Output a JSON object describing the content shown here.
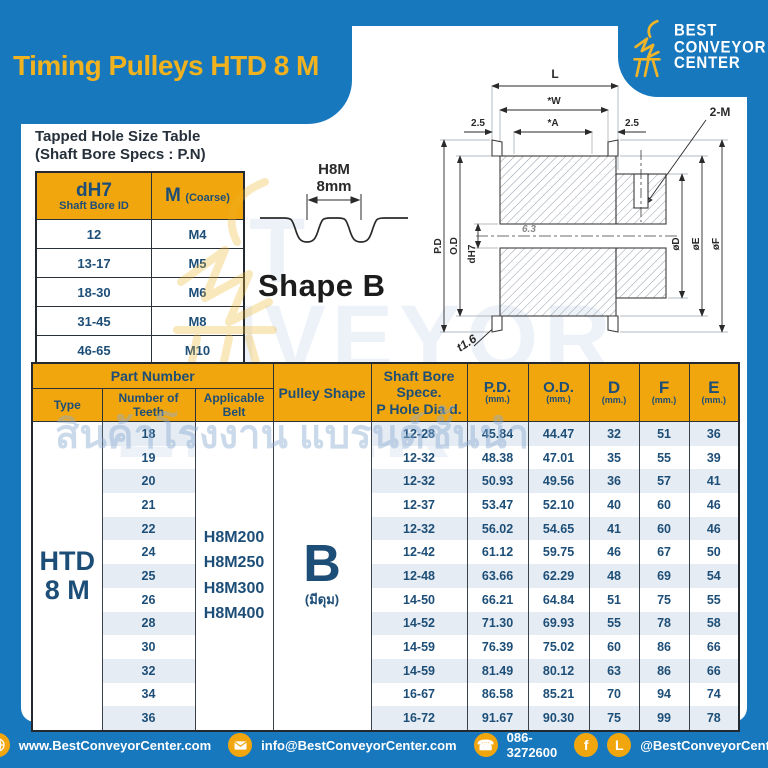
{
  "colors": {
    "blue": "#1878bd",
    "yellow": "#f2a60d",
    "title_yellow": "#f0b21e",
    "navy": "#1d4e77",
    "stripe": "#e6ecf3"
  },
  "header": {
    "title": "Timing Pulleys HTD 8 M",
    "logo": {
      "line1": "BEST",
      "line2": "CONVEYOR",
      "line3": "CENTER"
    }
  },
  "tapped_table": {
    "heading_line1": "Tapped Hole Size Table",
    "heading_line2": "(Shaft Bore Specs : P.N)",
    "col1_title": "dH7",
    "col1_sub": "Shaft Bore ID",
    "col2_title": "M",
    "col2_sub": "(Coarse)",
    "rows": [
      [
        "12",
        "M4"
      ],
      [
        "13-17",
        "M5"
      ],
      [
        "18-30",
        "M6"
      ],
      [
        "31-45",
        "M8"
      ],
      [
        "46-65",
        "M10"
      ]
    ]
  },
  "profile": {
    "belt_code": "H8M",
    "pitch": "8mm",
    "shape_label": "Shape B"
  },
  "drawing": {
    "l": "L",
    "w": "*W",
    "a": "*A",
    "offset_left": "2.5",
    "offset_right": "2.5",
    "screw": "2-M",
    "pd": "P.D",
    "od": "O.D",
    "bore": "dH7",
    "roughness": "6.3",
    "dia_d": "øD",
    "dia_e": "øE",
    "dia_f": "øF",
    "thickness": "t1.6"
  },
  "main_table": {
    "header": {
      "part_number": "Part Number",
      "type": "Type",
      "teeth": "Number of Teeth",
      "belt": "Applicable Belt",
      "shape": "Pulley Shape",
      "bore_line1": "Shaft Bore Spece.",
      "bore_line2": "P Hole Dia d.",
      "pd": "P.D.",
      "od": "O.D.",
      "d": "D",
      "f": "F",
      "e": "E",
      "mm": "(mm.)"
    },
    "type_lines": [
      "HTD",
      "8 M"
    ],
    "belts": [
      "H8M200",
      "H8M250",
      "H8M300",
      "H8M400"
    ],
    "shape_letter": "B",
    "shape_sub": "(มีดุม)",
    "rows": [
      {
        "teeth": "18",
        "bore": "12-28",
        "pd": "45.84",
        "od": "44.47",
        "d": "32",
        "f": "51",
        "e": "36"
      },
      {
        "teeth": "19",
        "bore": "12-32",
        "pd": "48.38",
        "od": "47.01",
        "d": "35",
        "f": "55",
        "e": "39"
      },
      {
        "teeth": "20",
        "bore": "12-32",
        "pd": "50.93",
        "od": "49.56",
        "d": "36",
        "f": "57",
        "e": "41"
      },
      {
        "teeth": "21",
        "bore": "12-37",
        "pd": "53.47",
        "od": "52.10",
        "d": "40",
        "f": "60",
        "e": "46"
      },
      {
        "teeth": "22",
        "bore": "12-32",
        "pd": "56.02",
        "od": "54.65",
        "d": "41",
        "f": "60",
        "e": "46"
      },
      {
        "teeth": "24",
        "bore": "12-42",
        "pd": "61.12",
        "od": "59.75",
        "d": "46",
        "f": "67",
        "e": "50"
      },
      {
        "teeth": "25",
        "bore": "12-48",
        "pd": "63.66",
        "od": "62.29",
        "d": "48",
        "f": "69",
        "e": "54"
      },
      {
        "teeth": "26",
        "bore": "14-50",
        "pd": "66.21",
        "od": "64.84",
        "d": "51",
        "f": "75",
        "e": "55"
      },
      {
        "teeth": "28",
        "bore": "14-52",
        "pd": "71.30",
        "od": "69.93",
        "d": "55",
        "f": "78",
        "e": "58"
      },
      {
        "teeth": "30",
        "bore": "14-59",
        "pd": "76.39",
        "od": "75.02",
        "d": "60",
        "f": "86",
        "e": "66"
      },
      {
        "teeth": "32",
        "bore": "14-59",
        "pd": "81.49",
        "od": "80.12",
        "d": "63",
        "f": "86",
        "e": "66"
      },
      {
        "teeth": "34",
        "bore": "16-67",
        "pd": "86.58",
        "od": "85.21",
        "d": "70",
        "f": "94",
        "e": "74"
      },
      {
        "teeth": "36",
        "bore": "16-72",
        "pd": "91.67",
        "od": "90.30",
        "d": "75",
        "f": "99",
        "e": "78"
      }
    ]
  },
  "watermark": {
    "brand_text": "BEST CONVEYOR CENTER",
    "thai_text": "สินค้าโรงงาน แบรนด์ชั้นนำ"
  },
  "footer": {
    "website": "www.BestConveyorCenter.com",
    "email": "info@BestConveyorCenter.com",
    "phone": "086-3272600",
    "social": "@BestConveyorCenter",
    "fb_letter": "f",
    "line_letter": "L"
  }
}
